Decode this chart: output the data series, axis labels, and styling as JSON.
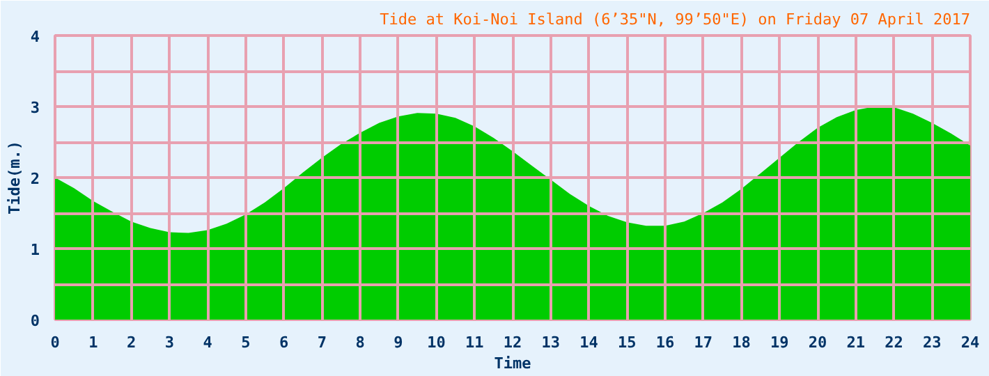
{
  "chart_data": {
    "type": "area",
    "title": "Tide at Koi-Noi Island (6’35\"N, 99’50\"E) on Friday 07 April 2017",
    "xlabel": "Time",
    "ylabel": "Tide(m.)",
    "x": [
      0,
      0.5,
      1,
      1.5,
      2,
      2.5,
      3,
      3.5,
      4,
      4.5,
      5,
      5.5,
      6,
      6.5,
      7,
      7.5,
      8,
      8.5,
      9,
      9.5,
      10,
      10.5,
      11,
      11.5,
      12,
      12.5,
      13,
      13.5,
      14,
      14.5,
      15,
      15.5,
      16,
      16.5,
      17,
      17.5,
      18,
      18.5,
      19,
      19.5,
      20,
      20.5,
      21,
      21.5,
      22,
      22.5,
      23,
      23.5,
      24
    ],
    "series": [
      {
        "color": "#00cc00",
        "values": [
          2.0,
          1.85,
          1.67,
          1.52,
          1.38,
          1.29,
          1.23,
          1.22,
          1.26,
          1.35,
          1.48,
          1.65,
          1.85,
          2.07,
          2.28,
          2.47,
          2.63,
          2.77,
          2.86,
          2.91,
          2.9,
          2.84,
          2.72,
          2.56,
          2.37,
          2.17,
          1.97,
          1.77,
          1.6,
          1.46,
          1.37,
          1.32,
          1.32,
          1.38,
          1.5,
          1.65,
          1.84,
          2.06,
          2.28,
          2.5,
          2.7,
          2.85,
          2.95,
          3.0,
          2.99,
          2.9,
          2.77,
          2.62,
          2.45
        ]
      }
    ],
    "xlim": [
      0,
      24
    ],
    "ylim": [
      0,
      4
    ],
    "xticks": [
      0,
      1,
      2,
      3,
      4,
      5,
      6,
      7,
      8,
      9,
      10,
      11,
      12,
      13,
      14,
      15,
      16,
      17,
      18,
      19,
      20,
      21,
      22,
      23,
      24
    ],
    "yticks": [
      0,
      {
        "value": 0.5,
        "label": null
      },
      1,
      {
        "value": 1.5,
        "label": null
      },
      2,
      {
        "value": 2.5,
        "label": null
      },
      3,
      {
        "value": 3.5,
        "label": null
      },
      4
    ],
    "grid": true
  }
}
